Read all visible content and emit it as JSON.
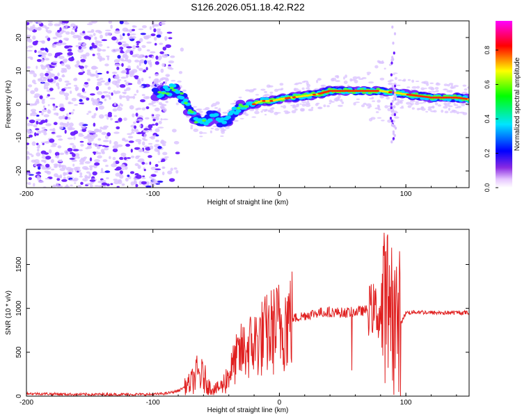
{
  "title": "S126.2026.051.18.42.R22",
  "colors": {
    "snr_line": "#e02020",
    "ridge_core": "#ff2a00",
    "scatter_light": "#d9c2ff",
    "scatter_dark": "#6a1cff"
  },
  "chart_data": [
    {
      "type": "heatmap",
      "name": "spectrogram",
      "xlabel": "Height of straight line (km)",
      "ylabel": "Frequency (Hz)",
      "xlim": [
        -200,
        150
      ],
      "ylim": [
        -25,
        25
      ],
      "xticks": [
        -200,
        -100,
        0,
        100
      ],
      "yticks": [
        -20,
        -10,
        0,
        10,
        20
      ],
      "ridge": {
        "x": [
          -95,
          -90,
          -85,
          -80,
          -75,
          -70,
          -65,
          -60,
          -55,
          -50,
          -45,
          -40,
          -35,
          -30,
          -25,
          -20,
          -15,
          -10,
          -5,
          0,
          10,
          20,
          30,
          40,
          50,
          60,
          70,
          80,
          90,
          100,
          110,
          120,
          130,
          140,
          150
        ],
        "freq": [
          3,
          4,
          4.5,
          4,
          1,
          -3,
          -5,
          -6,
          -4,
          -3,
          -6,
          -5,
          -2,
          -1,
          0,
          0,
          1,
          1,
          1,
          1.5,
          2,
          2.5,
          3,
          4,
          4,
          4,
          4,
          4,
          3.5,
          3,
          2.5,
          2,
          2,
          2,
          1.5
        ]
      },
      "colorbar": {
        "label": "Normalized spectral amplitude",
        "ticks": [
          "0.0",
          "0.2",
          "0.4",
          "0.6",
          "0.8"
        ],
        "range": [
          0,
          0.97
        ]
      }
    },
    {
      "type": "line",
      "name": "snr",
      "xlabel": "Height of straight line (km)",
      "ylabel": "SNR (10 * v/v)",
      "xlim": [
        -200,
        150
      ],
      "ylim": [
        0,
        1900
      ],
      "xticks": [
        -200,
        -100,
        0,
        100
      ],
      "yticks": [
        0,
        500,
        1000,
        1500
      ],
      "series": [
        {
          "name": "SNR",
          "x": [
            -200,
            -180,
            -160,
            -140,
            -120,
            -100,
            -90,
            -80,
            -70,
            -65,
            -60,
            -55,
            -50,
            -45,
            -40,
            -35,
            -30,
            -25,
            -20,
            -15,
            -10,
            -5,
            0,
            5,
            10,
            20,
            30,
            40,
            50,
            60,
            70,
            75,
            80,
            85,
            88,
            90,
            95,
            100,
            110,
            120,
            130,
            140,
            150
          ],
          "y": [
            30,
            25,
            20,
            20,
            20,
            20,
            30,
            60,
            150,
            250,
            220,
            100,
            80,
            120,
            250,
            400,
            500,
            550,
            600,
            650,
            700,
            750,
            800,
            850,
            880,
            920,
            950,
            960,
            950,
            960,
            980,
            1000,
            900,
            1100,
            1200,
            900,
            800,
            950,
            960,
            950,
            950,
            950,
            950
          ]
        }
      ]
    }
  ],
  "colorbar_label": "Normalized spectral amplitude"
}
